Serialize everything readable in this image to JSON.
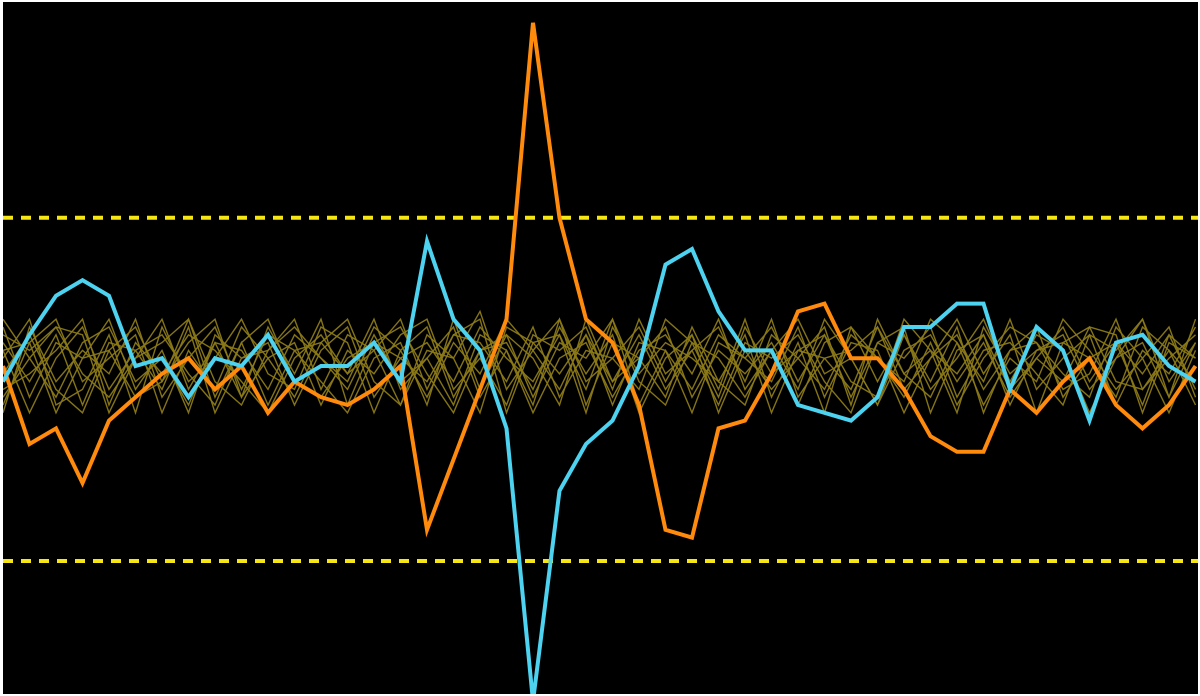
{
  "chart_data": {
    "type": "line",
    "title": "",
    "xlabel": "",
    "ylabel": "",
    "xlim": [
      0,
      46
    ],
    "ylim": [
      -4.7,
      4.7
    ],
    "grid": false,
    "legend": "none",
    "colors": {
      "background": "#000000",
      "threshold": "#f5e614",
      "highlight_a": "#ff8a0c",
      "highlight_b": "#4dd2f0",
      "background_series": "#8c7a18"
    },
    "thresholds": [
      1.9,
      -2.5
    ],
    "highlight_series": [
      {
        "color": "#ff8a0c",
        "values": [
          0.0,
          -1.0,
          -0.8,
          -1.5,
          -0.7,
          -0.4,
          -0.1,
          0.1,
          -0.3,
          0.0,
          -0.6,
          -0.2,
          -0.4,
          -0.5,
          -0.3,
          0.0,
          -2.1,
          -1.2,
          -0.3,
          0.6,
          4.4,
          1.9,
          0.6,
          0.3,
          -0.5,
          -2.1,
          -2.2,
          -0.8,
          -0.7,
          -0.1,
          0.7,
          0.8,
          0.1,
          0.1,
          -0.3,
          -0.9,
          -1.1,
          -1.1,
          -0.3,
          -0.6,
          -0.2,
          0.1,
          -0.5,
          -0.8,
          -0.5,
          0.0
        ]
      },
      {
        "color": "#4dd2f0",
        "values": [
          -0.2,
          0.4,
          0.9,
          1.1,
          0.9,
          0.0,
          0.1,
          -0.4,
          0.1,
          0.0,
          0.4,
          -0.2,
          0.0,
          0.0,
          0.3,
          -0.2,
          1.6,
          0.6,
          0.2,
          -0.8,
          -4.3,
          -1.6,
          -1.0,
          -0.7,
          0.0,
          1.3,
          1.5,
          0.7,
          0.2,
          0.2,
          -0.5,
          -0.6,
          -0.7,
          -0.4,
          0.5,
          0.5,
          0.8,
          0.8,
          -0.3,
          0.5,
          0.2,
          -0.7,
          0.3,
          0.4,
          0.0,
          -0.2
        ]
      }
    ],
    "background_series": [
      {
        "values": [
          0.6,
          0.1,
          -0.4,
          0.3,
          0.5,
          -0.2,
          0.1,
          -0.5,
          0.3,
          0.2,
          -0.3,
          0.4,
          0.1,
          -0.2,
          0.5,
          0.2,
          -0.4,
          0.3,
          -0.1,
          0.6,
          0.2,
          -0.3,
          0.4,
          -0.2,
          0.1,
          0.5,
          -0.4,
          0.2,
          -0.1,
          0.3,
          -0.3,
          0.6,
          0.1,
          -0.5,
          0.2,
          0.4,
          -0.2,
          0.3,
          -0.4,
          0.1,
          0.5,
          -0.2,
          0.3,
          -0.1,
          0.4,
          -0.3
        ]
      },
      {
        "values": [
          -0.5,
          0.3,
          0.6,
          -0.2,
          0.1,
          0.4,
          -0.6,
          0.2,
          -0.3,
          0.5,
          0.1,
          -0.4,
          0.3,
          0.6,
          -0.2,
          -0.5,
          0.4,
          0.1,
          0.7,
          -0.3,
          0.2,
          0.6,
          -0.5,
          0.3,
          0.1,
          -0.4,
          0.5,
          -0.2,
          0.4,
          -0.6,
          0.2,
          0.1,
          -0.3,
          0.5,
          -0.1,
          -0.4,
          0.3,
          -0.2,
          0.6,
          -0.3,
          0.1,
          0.4,
          -0.5,
          0.2,
          -0.1,
          0.5
        ]
      },
      {
        "values": [
          0.2,
          -0.6,
          0.1,
          0.5,
          -0.3,
          0.2,
          0.4,
          -0.1,
          -0.5,
          0.3,
          0.6,
          -0.2,
          -0.4,
          0.1,
          0.3,
          0.5,
          -0.1,
          -0.6,
          0.2,
          0.4,
          -0.4,
          0.3,
          0.1,
          0.6,
          -0.5,
          0.2,
          -0.3,
          0.4,
          0.1,
          -0.2,
          0.5,
          -0.4,
          0.3,
          0.2,
          -0.6,
          0.1,
          0.4,
          -0.3,
          0.2,
          0.5,
          -0.4,
          0.1,
          0.3,
          -0.5,
          0.4,
          0.1
        ]
      },
      {
        "values": [
          -0.1,
          0.4,
          -0.3,
          -0.6,
          0.2,
          0.5,
          -0.2,
          0.3,
          0.6,
          -0.4,
          0.1,
          0.3,
          -0.5,
          0.2,
          -0.1,
          0.4,
          0.6,
          -0.3,
          0.1,
          -0.5,
          0.4,
          0.2,
          0.5,
          -0.3,
          0.6,
          -0.1,
          0.2,
          -0.5,
          0.3,
          0.1,
          0.4,
          -0.2,
          -0.6,
          0.3,
          0.1,
          0.5,
          -0.4,
          0.2,
          0.3,
          -0.1,
          -0.5,
          0.4,
          0.2,
          0.6,
          -0.2,
          0.3
        ]
      },
      {
        "values": [
          0.4,
          0.2,
          0.5,
          -0.1,
          -0.4,
          0.1,
          0.3,
          0.6,
          -0.2,
          -0.5,
          0.2,
          0.5,
          0.1,
          -0.3,
          0.4,
          -0.2,
          0.1,
          0.5,
          -0.4,
          0.2,
          -0.6,
          0.1,
          0.3,
          -0.4,
          0.2,
          0.4,
          -0.1,
          0.6,
          -0.3,
          0.2,
          -0.5,
          0.3,
          0.5,
          -0.2,
          0.4,
          -0.3,
          0.1,
          0.6,
          -0.2,
          0.4,
          0.2,
          -0.6,
          0.1,
          0.3,
          -0.4,
          0.6
        ]
      },
      {
        "values": [
          -0.3,
          -0.1,
          0.2,
          0.6,
          -0.5,
          0.3,
          -0.1,
          0.4,
          0.2,
          -0.2,
          -0.6,
          0.1,
          0.4,
          -0.1,
          0.2,
          0.6,
          -0.3,
          0.4,
          0.3,
          -0.2,
          0.5,
          -0.4,
          0.2,
          0.1,
          -0.3,
          0.6,
          0.3,
          -0.4,
          0.5,
          -0.1,
          0.2,
          0.4,
          -0.2,
          -0.4,
          0.6,
          0.2,
          -0.1,
          0.4,
          -0.5,
          0.2,
          0.3,
          0.1,
          -0.4,
          0.5,
          0.2,
          -0.2
        ]
      },
      {
        "values": [
          0.5,
          -0.4,
          0.3,
          0.1,
          0.6,
          -0.3,
          0.2,
          -0.6,
          0.4,
          0.1,
          0.3,
          -0.5,
          0.2,
          0.5,
          -0.4,
          0.1,
          0.3,
          -0.2,
          0.5,
          0.1,
          -0.2,
          0.4,
          -0.6,
          0.5,
          -0.1,
          0.3,
          0.1,
          -0.2,
          -0.5,
          0.4,
          0.1,
          -0.3,
          0.4,
          0.1,
          -0.2,
          0.6,
          0.3,
          -0.5,
          0.1,
          -0.2,
          0.6,
          0.2,
          -0.3,
          0.1,
          0.5,
          -0.4
        ]
      },
      {
        "values": [
          -0.6,
          0.5,
          -0.2,
          0.2,
          -0.1,
          0.6,
          -0.4,
          0.1,
          0.5,
          -0.3,
          0.4,
          0.2,
          -0.2,
          -0.6,
          0.1,
          0.3,
          -0.5,
          0.6,
          -0.3,
          0.4,
          0.1,
          -0.5,
          0.6,
          -0.2,
          0.4,
          -0.3,
          0.2,
          0.5,
          -0.2,
          0.6,
          -0.4,
          0.1,
          0.2,
          0.5,
          -0.3,
          0.1,
          0.6,
          -0.1,
          0.4,
          -0.6,
          0.3,
          0.5,
          -0.2,
          -0.3,
          0.1,
          0.4
        ]
      },
      {
        "values": [
          0.1,
          0.6,
          -0.5,
          -0.3,
          0.4,
          -0.6,
          0.5,
          -0.2,
          0.1,
          0.6,
          -0.1,
          -0.3,
          0.5,
          0.3,
          -0.6,
          0.2,
          0.5,
          -0.4,
          0.2,
          0.3,
          -0.3,
          0.5,
          -0.1,
          0.4,
          -0.6,
          0.1,
          0.4,
          -0.3,
          0.6,
          -0.4,
          0.3,
          -0.6,
          0.5,
          0.1,
          -0.4,
          0.3,
          -0.5,
          0.1,
          0.5,
          0.3,
          -0.3,
          -0.1,
          0.6,
          -0.3,
          0.2,
          -0.5
        ]
      },
      {
        "values": [
          0.3,
          -0.2,
          0.4,
          -0.5,
          0.3,
          0.2,
          -0.3,
          0.5,
          -0.6,
          0.1,
          0.2,
          0.6,
          -0.3,
          0.4,
          0.2,
          -0.5,
          0.2,
          0.1,
          -0.6,
          0.5,
          0.3,
          -0.1,
          0.4,
          -0.5,
          0.3,
          0.2,
          -0.6,
          0.3,
          0.1,
          0.5,
          -0.2,
          0.4,
          -0.4,
          0.3,
          0.5,
          -0.6,
          0.2,
          0.4,
          -0.3,
          0.1,
          -0.2,
          0.5,
          0.4,
          -0.6,
          0.3,
          0.1
        ]
      },
      {
        "values": [
          -0.4,
          0.1,
          0.5,
          0.4,
          -0.6,
          0.1,
          0.6,
          -0.3,
          0.3,
          -0.4,
          0.5,
          -0.1,
          0.6,
          -0.5,
          0.3,
          0.1,
          -0.2,
          0.4,
          0.6,
          -0.6,
          0.3,
          0.4,
          -0.3,
          0.6,
          -0.2,
          -0.5,
          0.3,
          0.1,
          -0.4,
          0.2,
          0.6,
          -0.1,
          0.1,
          -0.5,
          0.4,
          -0.2,
          0.5,
          -0.6,
          0.2,
          0.3,
          -0.1,
          -0.4,
          0.5,
          0.1,
          -0.6,
          0.2
        ]
      },
      {
        "values": [
          0.2,
          0.3,
          -0.6,
          0.1,
          0.2,
          -0.4,
          -0.2,
          0.6,
          -0.4,
          0.3,
          -0.5,
          0.2,
          0.3,
          -0.1,
          0.6,
          -0.3,
          0.1,
          -0.5,
          0.4,
          0.2,
          -0.5,
          0.6,
          -0.2,
          0.1,
          0.5,
          -0.2,
          0.4,
          -0.6,
          0.2,
          -0.3,
          0.1,
          0.5,
          -0.5,
          0.6,
          -0.1,
          0.2,
          -0.6,
          0.5,
          -0.1,
          0.2,
          0.4,
          -0.3,
          0.1,
          0.6,
          -0.4,
          0.3
        ]
      }
    ]
  }
}
